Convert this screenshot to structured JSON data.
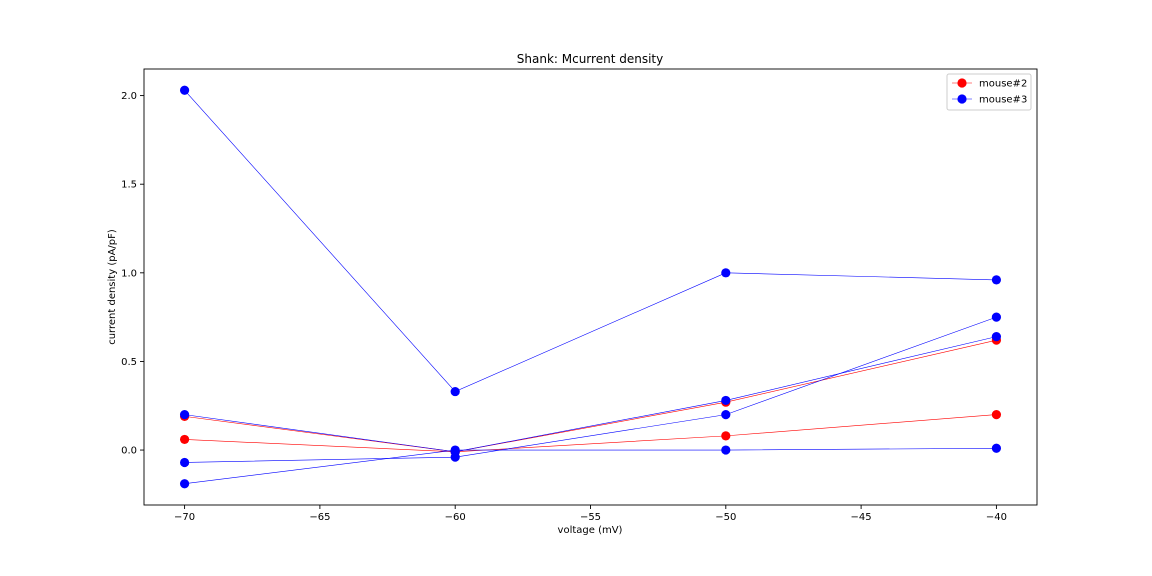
{
  "chart_data": {
    "type": "line",
    "title": "Shank: Mcurrent density",
    "xlabel": "voltage (mV)",
    "ylabel": "current density (pA/pF)",
    "xlim": [
      -71.5,
      -38.5
    ],
    "ylim": [
      -0.31,
      2.15
    ],
    "x_ticks": [
      -70,
      -65,
      -60,
      -55,
      -50,
      -45,
      -40
    ],
    "x_tick_labels": [
      "−70",
      "−65",
      "−60",
      "−55",
      "−50",
      "−45",
      "−40"
    ],
    "y_ticks": [
      0.0,
      0.5,
      1.0,
      1.5,
      2.0
    ],
    "y_tick_labels": [
      "0.0",
      "0.5",
      "1.0",
      "1.5",
      "2.0"
    ],
    "grid": false,
    "legend_position": "top-right",
    "legend": [
      {
        "label": "mouse#2",
        "color": "#ff0000"
      },
      {
        "label": "mouse#3",
        "color": "#0000ff"
      }
    ],
    "series": [
      {
        "group": "mouse#2",
        "color": "#ff0000",
        "x": [
          -70,
          -60,
          -50,
          -40
        ],
        "y": [
          0.19,
          -0.01,
          0.27,
          0.62
        ]
      },
      {
        "group": "mouse#2",
        "color": "#ff0000",
        "x": [
          -70,
          -60,
          -50,
          -40
        ],
        "y": [
          0.06,
          -0.01,
          0.08,
          0.2
        ]
      },
      {
        "group": "mouse#3",
        "color": "#0000ff",
        "x": [
          -70,
          -60,
          -50,
          -40
        ],
        "y": [
          2.03,
          0.33,
          1.0,
          0.96
        ]
      },
      {
        "group": "mouse#3",
        "color": "#0000ff",
        "x": [
          -70,
          -60,
          -50,
          -40
        ],
        "y": [
          0.2,
          -0.01,
          0.28,
          0.64
        ]
      },
      {
        "group": "mouse#3",
        "color": "#0000ff",
        "x": [
          -70,
          -60,
          -50,
          -40
        ],
        "y": [
          -0.07,
          -0.04,
          0.2,
          0.75
        ]
      },
      {
        "group": "mouse#3",
        "color": "#0000ff",
        "x": [
          -70,
          -60,
          -50,
          -40
        ],
        "y": [
          -0.19,
          0.0,
          0.0,
          0.01
        ]
      }
    ]
  }
}
